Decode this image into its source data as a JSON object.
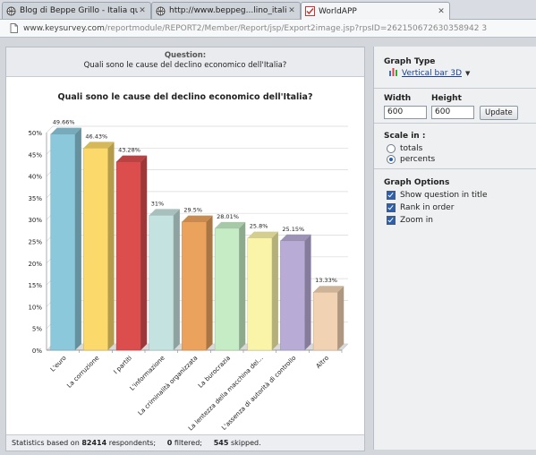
{
  "tabs": [
    {
      "label": "Blog di Beppe Grillo - Italia quara...",
      "icon": "globe-icon"
    },
    {
      "label": "http://www.beppeg...lino_italia.html",
      "icon": "globe-icon"
    },
    {
      "label": "WorldAPP",
      "icon": "worldapp-icon"
    }
  ],
  "url": {
    "domain": "www.keysurvey.com",
    "path": "/reportmodule/REPORT2/Member/Report/jsp/Export2image.jsp?rpsID=262150672630358942 3"
  },
  "question": {
    "label": "Question:",
    "text": "Quali sono le cause del declino economico dell'Italia?"
  },
  "chart_data": {
    "type": "bar",
    "title": "Quali sono le cause del declino economico dell'Italia?",
    "categories": [
      "L'euro",
      "La corruzione",
      "I partiti",
      "L'informazione",
      "La criminalità organizzata",
      "La burocrazia",
      "La lentezza della macchina del...",
      "L'assenza di autorità di controllo",
      "Altro"
    ],
    "values": [
      49.66,
      46.43,
      43.28,
      31,
      29.5,
      28.01,
      25.8,
      25.15,
      13.33
    ],
    "value_labels": [
      "49.66%",
      "46.43%",
      "43.28%",
      "31%",
      "29.5%",
      "28.01%",
      "25.8%",
      "25.15%",
      "13.33%"
    ],
    "colors": [
      "#8cc8dc",
      "#fbd96a",
      "#dc4e4e",
      "#c4e2e0",
      "#eba25c",
      "#c5ecc4",
      "#faf4a8",
      "#b8acd6",
      "#f1d2b2"
    ],
    "yticks": [
      "0%",
      "5%",
      "10%",
      "15%",
      "20%",
      "25%",
      "30%",
      "35%",
      "40%",
      "45%",
      "50%"
    ],
    "ylim": [
      0,
      50
    ],
    "grid": true
  },
  "footer": {
    "prefix": "Statistics based on ",
    "respondents": "82414",
    "respondents_suffix": " respondents;",
    "filtered": "0",
    "filtered_suffix": " filtered;",
    "skipped": "545",
    "skipped_suffix": " skipped."
  },
  "graph_type": {
    "title": "Graph Type",
    "value": "Vertical bar 3D"
  },
  "size": {
    "width_label": "Width",
    "height_label": "Height",
    "width_value": "600",
    "height_value": "600",
    "update_label": "Update"
  },
  "scale": {
    "title": "Scale in :",
    "options": [
      {
        "label": "totals",
        "selected": false
      },
      {
        "label": "percents",
        "selected": true
      }
    ]
  },
  "graph_options": {
    "title": "Graph Options",
    "items": [
      {
        "label": "Show question in title",
        "checked": true
      },
      {
        "label": "Rank in order",
        "checked": true
      },
      {
        "label": "Zoom in",
        "checked": true
      }
    ]
  }
}
